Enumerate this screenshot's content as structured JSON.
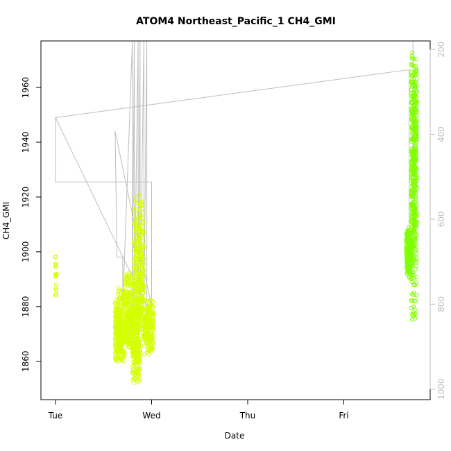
{
  "chart_data": {
    "type": "scatter",
    "title": "ATOM4 Northeast_Pacific_1 CH4_GMI",
    "xlabel": "Date",
    "ylabel": "CH4_GMI",
    "x_ticks": [
      "Tue",
      "Wed",
      "Thu",
      "Fri"
    ],
    "y_ticks": [
      1860,
      1880,
      1900,
      1920,
      1940,
      1960
    ],
    "y_range": [
      1846,
      1977
    ],
    "y2_ticks": [
      200,
      400,
      600,
      800,
      1000
    ],
    "y2_range": [
      1025,
      180
    ],
    "y2_reversed": true,
    "x_range_days": [
      -0.08,
      3.9
    ],
    "grid": false,
    "colors": {
      "marker_low": "#d4ff00",
      "marker_high": "#7fff00",
      "pressure_line": "#bdbdbd",
      "axis": "#000000",
      "right_axis": "#bdbdbd"
    },
    "series": [
      {
        "kind": "points",
        "clusters": [
          {
            "day_start": 0.0,
            "day_end": 0.01,
            "min": 1883,
            "max": 1899,
            "count": 18
          },
          {
            "day_start": 0.62,
            "day_end": 0.72,
            "min": 1860,
            "max": 1887,
            "count": 260
          },
          {
            "day_start": 0.72,
            "day_end": 0.8,
            "min": 1865,
            "max": 1893,
            "count": 240
          },
          {
            "day_start": 0.8,
            "day_end": 0.88,
            "min": 1852,
            "max": 1890,
            "count": 220
          },
          {
            "day_start": 0.82,
            "day_end": 0.92,
            "min": 1870,
            "max": 1922,
            "count": 260
          },
          {
            "day_start": 0.92,
            "day_end": 1.02,
            "min": 1862,
            "max": 1883,
            "count": 200
          },
          {
            "day_start": 3.65,
            "day_end": 3.7,
            "min": 1889,
            "max": 1909,
            "count": 160
          },
          {
            "day_start": 3.7,
            "day_end": 3.76,
            "min": 1873,
            "max": 1973,
            "count": 420
          }
        ]
      },
      {
        "kind": "pressure_line",
        "points": [
          [
            0.0,
            1949
          ],
          [
            0.0,
            1925.5
          ],
          [
            1.0,
            1925.5
          ],
          [
            1.0,
            1880
          ],
          [
            0.62,
            1944
          ],
          [
            0.64,
            1898
          ],
          [
            0.7,
            1898
          ],
          [
            0.7,
            1880
          ],
          [
            0.8,
            1977
          ],
          [
            0.8,
            1880
          ],
          [
            0.82,
            1977
          ],
          [
            0.82,
            1880
          ],
          [
            0.86,
            1977
          ],
          [
            0.86,
            1880
          ],
          [
            0.88,
            1977
          ],
          [
            0.88,
            1880
          ],
          [
            0.92,
            1977
          ],
          [
            0.92,
            1880
          ],
          [
            0.95,
            1977
          ],
          [
            0.95,
            1880
          ],
          [
            0.0,
            1949
          ],
          [
            3.68,
            1966.5
          ],
          [
            3.68,
            1895
          ],
          [
            3.72,
            1895
          ],
          [
            3.72,
            1977
          ]
        ]
      }
    ]
  }
}
